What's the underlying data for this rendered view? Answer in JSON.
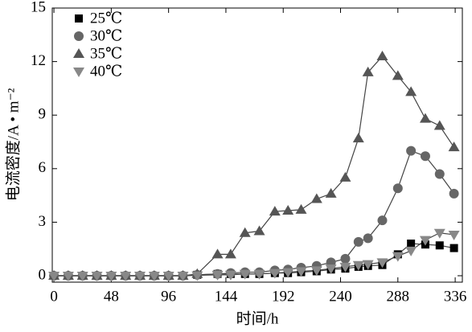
{
  "chart_data": {
    "type": "line",
    "xlabel": "时间/h",
    "ylabel": "电流密度/A • m⁻²",
    "x": [
      0,
      12,
      24,
      36,
      48,
      60,
      72,
      84,
      96,
      108,
      120,
      137,
      148,
      160,
      172,
      185,
      196,
      207,
      220,
      232,
      244,
      255,
      263,
      275,
      288,
      299,
      311,
      323,
      335
    ],
    "series": [
      {
        "name": "25℃",
        "color": "#000000",
        "marker": "square",
        "values": [
          0,
          0,
          0,
          0,
          0,
          0,
          0,
          0,
          0,
          0,
          0.05,
          0.1,
          0.1,
          0.1,
          0.1,
          0.15,
          0.15,
          0.2,
          0.25,
          0.35,
          0.4,
          0.5,
          0.55,
          0.6,
          1.2,
          1.8,
          1.75,
          1.7,
          1.55
        ]
      },
      {
        "name": "30℃",
        "color": "#666666",
        "marker": "circle",
        "values": [
          0,
          0,
          0,
          0,
          0,
          0,
          0,
          0,
          0,
          0,
          0.05,
          0.1,
          0.15,
          0.2,
          0.2,
          0.3,
          0.35,
          0.45,
          0.55,
          0.75,
          0.95,
          1.9,
          2.1,
          3.1,
          4.9,
          7.0,
          6.7,
          5.7,
          4.6
        ]
      },
      {
        "name": "35℃",
        "color": "#555555",
        "marker": "triangle",
        "values": [
          0,
          0,
          0,
          0,
          0,
          0,
          0,
          0,
          0,
          0,
          0.1,
          1.2,
          1.2,
          2.4,
          2.5,
          3.6,
          3.65,
          3.7,
          4.3,
          4.6,
          5.5,
          7.7,
          11.4,
          12.3,
          11.2,
          10.3,
          8.8,
          8.4,
          7.2
        ]
      },
      {
        "name": "40℃",
        "color": "#888888",
        "marker": "triangle-down",
        "values": [
          0,
          0,
          0,
          0,
          0,
          0,
          0,
          0,
          0,
          0,
          0.02,
          0.05,
          0.05,
          0.1,
          0.1,
          0.15,
          0.2,
          0.25,
          0.3,
          0.4,
          0.5,
          0.6,
          0.65,
          0.75,
          1.1,
          1.4,
          2.0,
          2.4,
          2.3
        ]
      }
    ],
    "xlim": [
      -1.4,
      342
    ],
    "xticks": [
      0,
      48,
      96,
      144,
      192,
      240,
      288,
      336
    ],
    "ylim": [
      -0.36,
      15
    ],
    "yticks": [
      0,
      3,
      6,
      9,
      12,
      15
    ],
    "legend": "upper left"
  }
}
